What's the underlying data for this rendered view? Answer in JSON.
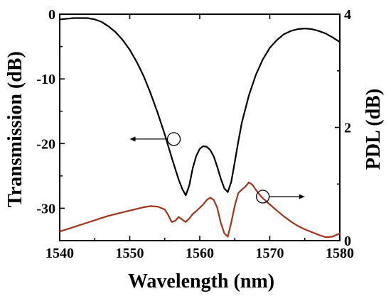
{
  "chart_data": {
    "type": "line",
    "xlabel": "Wavelength (nm)",
    "ylabel_left": "Transmission (dB)",
    "ylabel_right": "PDL (dB)",
    "xlim": [
      1540,
      1580
    ],
    "ylim_left": [
      -35,
      0
    ],
    "ylim_right": [
      0,
      4
    ],
    "xticks": [
      1540,
      1550,
      1560,
      1570,
      1580
    ],
    "xtick_labels": [
      "1540",
      "1550",
      "1560",
      "1570",
      "1580"
    ],
    "yticks_left": [
      0,
      -10,
      -20,
      -30
    ],
    "ytick_labels_left": [
      "0",
      "-10",
      "-20",
      "-30"
    ],
    "yticks_right": [
      0,
      2,
      4
    ],
    "ytick_labels_right": [
      "0",
      "2",
      "4"
    ],
    "grid": false,
    "colors": {
      "transmission": "#000000",
      "pdl": "#a0341c"
    },
    "series": [
      {
        "axis": "left",
        "color": "#000000",
        "x": [
          1540,
          1542,
          1544,
          1545,
          1546,
          1547,
          1548,
          1549,
          1550,
          1551,
          1552,
          1553,
          1554,
          1555,
          1556,
          1557,
          1557.5,
          1558,
          1558.5,
          1559,
          1559.5,
          1560,
          1560.5,
          1561,
          1561.5,
          1562,
          1562.5,
          1563,
          1563.5,
          1564,
          1564.5,
          1565,
          1565.5,
          1566,
          1567,
          1568,
          1569,
          1570,
          1571,
          1572,
          1573,
          1574,
          1575,
          1576,
          1577,
          1578,
          1579,
          1580
        ],
        "y": [
          -0.8,
          -0.6,
          -0.6,
          -0.8,
          -1.2,
          -1.9,
          -2.8,
          -4.0,
          -5.5,
          -7.4,
          -9.6,
          -12.3,
          -15.3,
          -18.6,
          -22.2,
          -25.6,
          -27.0,
          -28.0,
          -26.5,
          -23.8,
          -21.9,
          -20.8,
          -20.4,
          -20.5,
          -21.0,
          -22.0,
          -23.6,
          -25.4,
          -26.9,
          -27.5,
          -25.9,
          -22.8,
          -19.7,
          -16.8,
          -12.6,
          -9.4,
          -7.0,
          -5.2,
          -4.0,
          -3.1,
          -2.6,
          -2.3,
          -2.2,
          -2.3,
          -2.6,
          -3.0,
          -3.6,
          -4.3
        ]
      },
      {
        "axis": "right",
        "color": "#a0341c",
        "x": [
          1540,
          1541,
          1542,
          1543,
          1544,
          1545,
          1546,
          1547,
          1548,
          1549,
          1550,
          1551,
          1552,
          1553,
          1554,
          1555,
          1555.5,
          1556,
          1556.5,
          1557,
          1557.5,
          1558,
          1558.5,
          1559,
          1559.5,
          1560,
          1560.5,
          1561,
          1561.5,
          1562,
          1562.5,
          1563,
          1563.5,
          1564,
          1564.5,
          1565,
          1565.5,
          1566,
          1566.5,
          1567,
          1567.5,
          1568,
          1568.5,
          1569,
          1570,
          1571,
          1572,
          1573,
          1574,
          1575,
          1576,
          1577,
          1578,
          1579,
          1580
        ],
        "y": [
          0.16,
          0.2,
          0.24,
          0.28,
          0.32,
          0.36,
          0.4,
          0.44,
          0.47,
          0.5,
          0.53,
          0.56,
          0.59,
          0.61,
          0.6,
          0.55,
          0.45,
          0.33,
          0.35,
          0.42,
          0.37,
          0.33,
          0.39,
          0.47,
          0.52,
          0.58,
          0.64,
          0.72,
          0.76,
          0.72,
          0.58,
          0.32,
          0.13,
          0.07,
          0.32,
          0.62,
          0.84,
          0.9,
          0.95,
          1.03,
          0.99,
          0.9,
          0.82,
          0.75,
          0.64,
          0.53,
          0.43,
          0.34,
          0.26,
          0.2,
          0.15,
          0.1,
          0.06,
          0.07,
          0.13
        ]
      }
    ],
    "annotations": [
      {
        "type": "circle-arrow",
        "points_to": "left",
        "circle_x": 1556.3,
        "circle_y_left": -19.3,
        "arrow_end_x": 1550
      },
      {
        "type": "circle-arrow",
        "points_to": "right",
        "circle_x": 1569,
        "circle_y_left": -28.2,
        "arrow_end_x": 1575
      }
    ]
  }
}
